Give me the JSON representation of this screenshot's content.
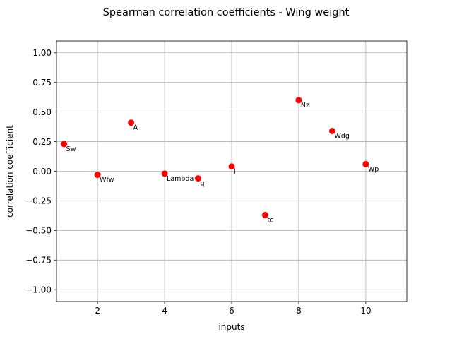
{
  "chart_data": {
    "type": "scatter",
    "title": "Spearman correlation coefficients - Wing weight",
    "xlabel": "inputs",
    "ylabel": "correlation coefficient",
    "xlim": [
      0.775,
      11.225
    ],
    "ylim": [
      -1.1,
      1.1
    ],
    "xticks": [
      2,
      4,
      6,
      8,
      10
    ],
    "xtick_labels": [
      "2",
      "4",
      "6",
      "8",
      "10"
    ],
    "yticks": [
      1.0,
      0.75,
      0.5,
      0.25,
      0.0,
      -0.25,
      -0.5,
      -0.75,
      -1.0
    ],
    "ytick_labels": [
      "1.00",
      "0.75",
      "0.50",
      "0.25",
      "0.00",
      "−0.25",
      "−0.50",
      "−0.75",
      "−1.00"
    ],
    "grid": true,
    "marker_color": "#ff0000",
    "points": [
      {
        "x": 1,
        "y": 0.23,
        "label": "Sw"
      },
      {
        "x": 2,
        "y": -0.03,
        "label": "Wfw"
      },
      {
        "x": 3,
        "y": 0.41,
        "label": "A"
      },
      {
        "x": 4,
        "y": -0.02,
        "label": "Lambda"
      },
      {
        "x": 5,
        "y": -0.06,
        "label": "q"
      },
      {
        "x": 6,
        "y": 0.04,
        "label": "l"
      },
      {
        "x": 7,
        "y": -0.37,
        "label": "tc"
      },
      {
        "x": 8,
        "y": 0.6,
        "label": "Nz"
      },
      {
        "x": 9,
        "y": 0.34,
        "label": "Wdg"
      },
      {
        "x": 10,
        "y": 0.06,
        "label": "Wp"
      }
    ]
  }
}
